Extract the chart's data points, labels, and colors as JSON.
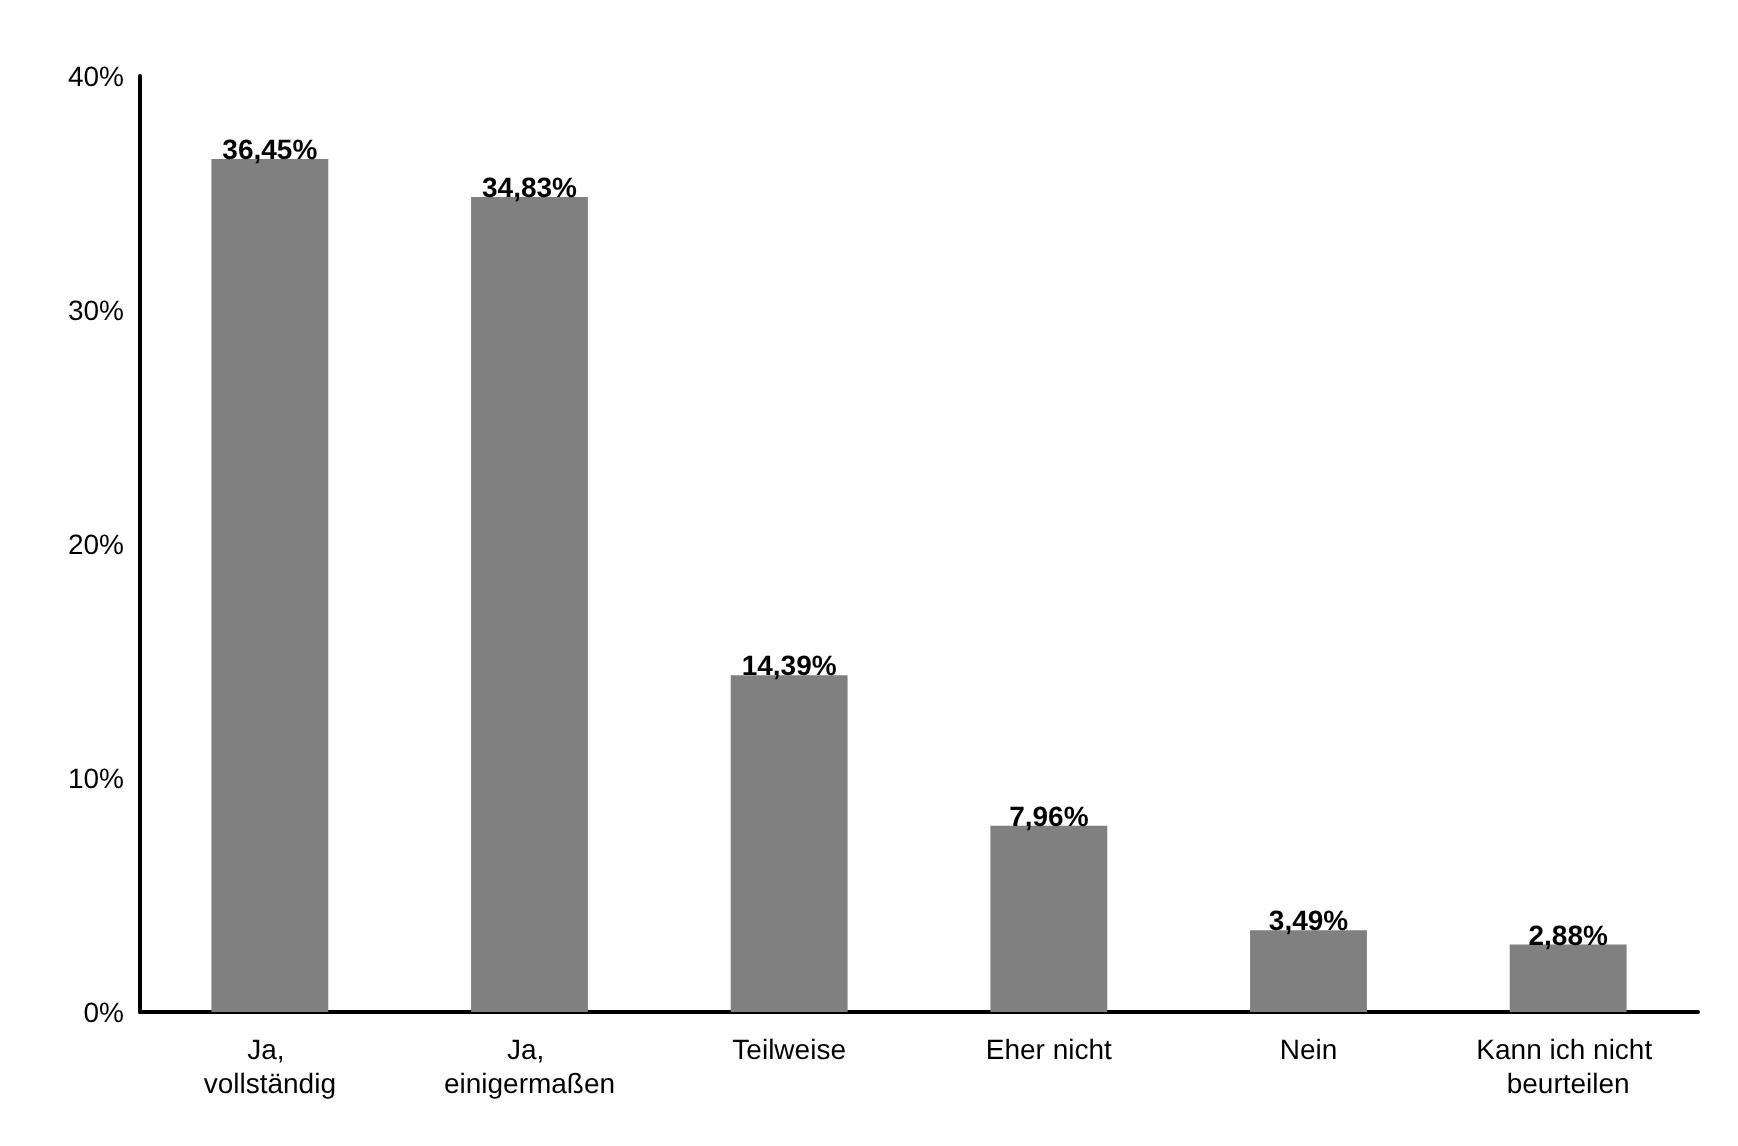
{
  "chart_data": {
    "type": "bar",
    "categories": [
      "Ja, vollständig",
      "Ja, einigermaßen",
      "Teilweise",
      "Eher nicht",
      "Nein",
      "Kann ich nicht beurteilen"
    ],
    "values": [
      36.45,
      34.83,
      14.39,
      7.96,
      3.49,
      2.88
    ],
    "value_labels": [
      "36,45%",
      "34,83%",
      "14,39%",
      "7,96%",
      "3,49%",
      "2,88%"
    ],
    "color": "#808080",
    "ylim": [
      0,
      40
    ],
    "yticks": [
      {
        "value": 0,
        "label": "0%"
      },
      {
        "value": 10,
        "label": "10%"
      },
      {
        "value": 20,
        "label": "20%"
      },
      {
        "value": 30,
        "label": "30%"
      },
      {
        "value": 40,
        "label": "40%"
      }
    ],
    "grid": false
  }
}
